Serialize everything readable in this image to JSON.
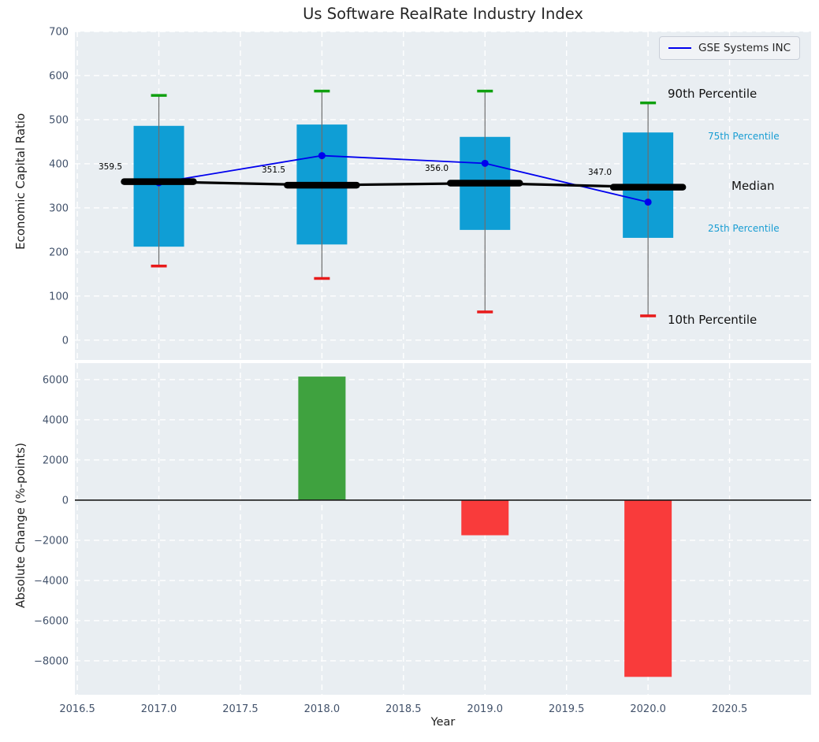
{
  "colors": {
    "axes_bg": "#e9eef2",
    "grid": "#ffffff",
    "tick": "#42526b",
    "text": "#1f1f1f",
    "box": "#0f9ed5",
    "whisker": "#6e6e6e",
    "cap_top": "#0fa00f",
    "cap_bottom": "#e81a1a",
    "median": "#000000",
    "company_line": "#0000ee",
    "bar_positive": "#3fa23f",
    "bar_negative": "#f93b3b",
    "zero_line": "#1a1a1a",
    "percentile_label": "#199dd3"
  },
  "chart_data": [
    {
      "type": "box-line",
      "title": "Us Software RealRate Industry Index",
      "ylabel": "Economic Capital Ratio",
      "xlim": [
        2016.485,
        2021.0
      ],
      "ylim": [
        -45,
        700
      ],
      "yticks": [
        0,
        100,
        200,
        300,
        400,
        500,
        600,
        700
      ],
      "ytick_labels": [
        "0",
        "100",
        "200",
        "300",
        "400",
        "500",
        "600",
        "700"
      ],
      "xticks": [
        2016.5,
        2017.0,
        2017.5,
        2018.0,
        2018.5,
        2019.0,
        2019.5,
        2020.0,
        2020.5
      ],
      "grid": true,
      "legend_position": "upper right",
      "boxes": [
        {
          "year": 2017,
          "p10": 168,
          "q1": 212,
          "median": 359.5,
          "q3": 486,
          "p90": 555,
          "median_label": "359.5"
        },
        {
          "year": 2018,
          "p10": 140,
          "q1": 217,
          "median": 351.5,
          "q3": 489,
          "p90": 565,
          "median_label": "351.5"
        },
        {
          "year": 2019,
          "p10": 64,
          "q1": 250,
          "median": 356.0,
          "q3": 461,
          "p90": 565,
          "median_label": "356.0"
        },
        {
          "year": 2020,
          "p10": 55,
          "q1": 232,
          "median": 347.0,
          "q3": 471,
          "p90": 538,
          "median_label": "347.0"
        }
      ],
      "series": [
        {
          "name": "GSE Systems INC",
          "x": [
            2017,
            2018,
            2019,
            2020
          ],
          "values": [
            357,
            418.5,
            401,
            313
          ]
        }
      ],
      "annotations": [
        {
          "text": "90th Percentile",
          "style": "large"
        },
        {
          "text": "75th Percentile",
          "style": "small"
        },
        {
          "text": "Median",
          "style": "large"
        },
        {
          "text": "25th Percentile",
          "style": "small"
        },
        {
          "text": "10th Percentile",
          "style": "large"
        }
      ]
    },
    {
      "type": "bar",
      "ylabel": "Absolute Change (%-points)",
      "xlabel": "Year",
      "xlim": [
        2016.485,
        2021.0
      ],
      "ylim": [
        -9690,
        6820
      ],
      "yticks": [
        6000,
        4000,
        2000,
        0,
        -2000,
        -4000,
        -6000,
        -8000
      ],
      "ytick_labels": [
        "6000",
        "4000",
        "2000",
        "0",
        "−2000",
        "−4000",
        "−6000",
        "−8000"
      ],
      "xticks": [
        2016.5,
        2017.0,
        2017.5,
        2018.0,
        2018.5,
        2019.0,
        2019.5,
        2020.0,
        2020.5
      ],
      "xtick_labels": [
        "2016.5",
        "2017.0",
        "2017.5",
        "2018.0",
        "2018.5",
        "2019.0",
        "2019.5",
        "2020.0",
        "2020.5"
      ],
      "grid": true,
      "categories": [
        2018,
        2019,
        2020
      ],
      "values": [
        6150,
        -1750,
        -8800
      ]
    }
  ]
}
